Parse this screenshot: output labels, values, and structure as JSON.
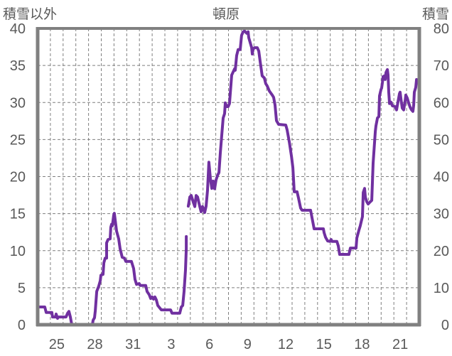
{
  "chart_data": {
    "type": "line",
    "title": "頓原",
    "ylabel_left": "積雪以外",
    "ylabel_right": "積雪",
    "ylim_left": [
      0,
      40
    ],
    "ylim_right": [
      0,
      80
    ],
    "yticks_left": [
      "0",
      "5",
      "10",
      "15",
      "20",
      "25",
      "30",
      "35",
      "40"
    ],
    "yticks_right": [
      "0",
      "10",
      "20",
      "30",
      "40",
      "50",
      "60",
      "70",
      "80"
    ],
    "xlim_days": [
      0,
      30
    ],
    "x_tick_labels": [
      {
        "label": "25",
        "day": 1.5
      },
      {
        "label": "28",
        "day": 4.5
      },
      {
        "label": "31",
        "day": 7.5
      },
      {
        "label": "3",
        "day": 10.5
      },
      {
        "label": "6",
        "day": 13.5
      },
      {
        "label": "9",
        "day": 16.5
      },
      {
        "label": "12",
        "day": 19.5
      },
      {
        "label": "15",
        "day": 22.5
      },
      {
        "label": "18",
        "day": 25.5
      },
      {
        "label": "21",
        "day": 28.5
      }
    ],
    "grid": true,
    "series": [
      {
        "name": "積雪",
        "axis": "right",
        "color": "#7030a0",
        "segments": [
          [
            [
              0,
              4.8
            ],
            [
              0.56,
              4.8
            ],
            [
              0.67,
              3.3
            ],
            [
              1.12,
              3.3
            ],
            [
              1.17,
              2.1
            ],
            [
              1.4,
              2.1
            ],
            [
              1.45,
              2.9
            ],
            [
              1.56,
              1.7
            ],
            [
              1.62,
              2.1
            ],
            [
              2.23,
              2.1
            ],
            [
              2.35,
              3.1
            ],
            [
              2.46,
              3.6
            ],
            [
              2.57,
              2.1
            ],
            [
              2.68,
              0
            ],
            [
              4.3,
              0
            ],
            [
              4.36,
              1.2
            ],
            [
              4.47,
              1.9
            ],
            [
              4.53,
              3.8
            ],
            [
              4.64,
              9.0
            ],
            [
              4.8,
              10.4
            ],
            [
              4.92,
              11.9
            ],
            [
              4.97,
              13.4
            ],
            [
              5.14,
              13.6
            ],
            [
              5.2,
              16.7
            ],
            [
              5.31,
              18.0
            ],
            [
              5.42,
              18.0
            ],
            [
              5.42,
              22.1
            ],
            [
              5.53,
              23.0
            ],
            [
              5.7,
              23.2
            ],
            [
              5.75,
              26.3
            ],
            [
              5.81,
              27.1
            ],
            [
              5.87,
              26.7
            ],
            [
              5.98,
              29.6
            ],
            [
              6.03,
              30.1
            ],
            [
              6.15,
              26.7
            ],
            [
              6.2,
              25.3
            ],
            [
              6.37,
              23.2
            ],
            [
              6.48,
              20.5
            ],
            [
              6.65,
              18.2
            ],
            [
              6.82,
              18.0
            ],
            [
              6.93,
              17.1
            ],
            [
              7.37,
              17.1
            ],
            [
              7.54,
              15.2
            ],
            [
              7.65,
              12.3
            ],
            [
              7.77,
              10.9
            ],
            [
              7.99,
              11.1
            ],
            [
              8.05,
              10.6
            ],
            [
              8.49,
              10.6
            ],
            [
              8.6,
              9.0
            ],
            [
              8.77,
              8.1
            ],
            [
              8.88,
              7.1
            ],
            [
              9.0,
              7.5
            ],
            [
              9.11,
              6.9
            ],
            [
              9.22,
              7.5
            ],
            [
              9.33,
              6.7
            ],
            [
              9.44,
              5.2
            ],
            [
              9.72,
              4.0
            ],
            [
              10.45,
              4.0
            ],
            [
              10.56,
              3.1
            ],
            [
              11.17,
              3.1
            ],
            [
              11.29,
              4.8
            ],
            [
              11.4,
              5.2
            ],
            [
              11.51,
              9.0
            ],
            [
              11.62,
              14.8
            ],
            [
              11.68,
              20.5
            ],
            [
              11.68,
              23.8
            ]
          ],
          [
            [
              11.84,
              32.0
            ],
            [
              11.96,
              34.5
            ],
            [
              12.07,
              34.9
            ],
            [
              12.24,
              33.0
            ],
            [
              12.35,
              31.9
            ],
            [
              12.46,
              34.9
            ],
            [
              12.57,
              34.5
            ],
            [
              12.74,
              32.0
            ],
            [
              12.85,
              30.5
            ],
            [
              12.96,
              31.9
            ],
            [
              13.13,
              30.3
            ],
            [
              13.24,
              32.0
            ],
            [
              13.35,
              36.3
            ],
            [
              13.46,
              43.9
            ],
            [
              13.58,
              39.3
            ],
            [
              13.69,
              36.8
            ],
            [
              13.8,
              38.8
            ],
            [
              13.91,
              36.7
            ],
            [
              14.02,
              39.1
            ],
            [
              14.14,
              40.3
            ],
            [
              14.25,
              41.1
            ],
            [
              14.36,
              46.4
            ],
            [
              14.58,
              55.8
            ],
            [
              14.69,
              57.0
            ],
            [
              14.75,
              59.9
            ],
            [
              14.86,
              58.9
            ],
            [
              14.97,
              58.9
            ],
            [
              15.08,
              59.7
            ],
            [
              15.25,
              67.4
            ],
            [
              15.48,
              69.1
            ],
            [
              15.53,
              68.7
            ],
            [
              15.64,
              72.7
            ],
            [
              15.76,
              74.3
            ],
            [
              15.92,
              74.3
            ],
            [
              16.03,
              78.1
            ],
            [
              16.15,
              79.1
            ],
            [
              16.26,
              79.3
            ],
            [
              16.43,
              78.7
            ],
            [
              16.54,
              79.1
            ],
            [
              16.59,
              77.5
            ],
            [
              16.82,
              74.8
            ],
            [
              16.87,
              73.1
            ],
            [
              16.93,
              74.3
            ],
            [
              17.04,
              74.8
            ],
            [
              17.26,
              74.8
            ],
            [
              17.38,
              73.9
            ],
            [
              17.49,
              71.0
            ],
            [
              17.65,
              67.2
            ],
            [
              17.82,
              66.6
            ],
            [
              17.93,
              65.1
            ],
            [
              18.04,
              64.5
            ],
            [
              18.21,
              63.1
            ],
            [
              18.44,
              62.0
            ],
            [
              18.55,
              61.4
            ],
            [
              18.66,
              59.3
            ],
            [
              18.77,
              55.1
            ],
            [
              18.94,
              54.1
            ],
            [
              19.5,
              53.9
            ],
            [
              19.61,
              52.6
            ],
            [
              19.78,
              49.3
            ],
            [
              19.95,
              45.5
            ],
            [
              20.06,
              42.4
            ],
            [
              20.17,
              35.9
            ],
            [
              20.39,
              35.9
            ],
            [
              20.5,
              34.3
            ],
            [
              20.67,
              31.5
            ],
            [
              20.78,
              30.9
            ],
            [
              21.45,
              30.9
            ],
            [
              21.73,
              25.9
            ],
            [
              22.46,
              25.9
            ],
            [
              22.52,
              24.8
            ],
            [
              22.63,
              23.6
            ],
            [
              22.8,
              22.6
            ],
            [
              22.96,
              22.5
            ],
            [
              23.07,
              23.0
            ],
            [
              23.13,
              22.5
            ],
            [
              23.52,
              22.5
            ],
            [
              23.63,
              21.3
            ],
            [
              23.74,
              19.0
            ],
            [
              24.47,
              19.0
            ],
            [
              24.58,
              20.7
            ],
            [
              25.03,
              20.7
            ],
            [
              25.09,
              23.4
            ],
            [
              25.25,
              25.5
            ],
            [
              25.36,
              26.7
            ],
            [
              25.42,
              27.6
            ],
            [
              25.53,
              29.2
            ],
            [
              25.59,
              35.7
            ],
            [
              25.7,
              36.8
            ],
            [
              25.76,
              34.4
            ],
            [
              25.87,
              33.2
            ],
            [
              25.98,
              32.6
            ],
            [
              26.09,
              33.0
            ],
            [
              26.26,
              33.6
            ],
            [
              26.37,
              43.6
            ],
            [
              26.54,
              52.2
            ],
            [
              26.59,
              53.7
            ],
            [
              26.71,
              55.8
            ],
            [
              26.82,
              56.2
            ],
            [
              26.87,
              61.8
            ],
            [
              26.99,
              63.5
            ],
            [
              27.04,
              63.9
            ],
            [
              27.1,
              65.4
            ],
            [
              27.15,
              67.0
            ],
            [
              27.26,
              67.2
            ],
            [
              27.32,
              66.2
            ],
            [
              27.38,
              68.1
            ],
            [
              27.49,
              68.9
            ],
            [
              27.54,
              67.5
            ],
            [
              27.6,
              62.8
            ],
            [
              27.66,
              59.7
            ],
            [
              27.77,
              60.1
            ],
            [
              27.88,
              59.1
            ],
            [
              28.1,
              58.9
            ],
            [
              28.21,
              58.0
            ],
            [
              28.33,
              60.3
            ],
            [
              28.44,
              62.4
            ],
            [
              28.49,
              62.8
            ],
            [
              28.55,
              61.2
            ],
            [
              28.66,
              58.5
            ],
            [
              28.77,
              58.0
            ],
            [
              28.89,
              60.5
            ],
            [
              28.94,
              62.0
            ],
            [
              29.05,
              61.2
            ],
            [
              29.16,
              59.9
            ],
            [
              29.28,
              58.7
            ],
            [
              29.39,
              58.0
            ],
            [
              29.5,
              57.6
            ],
            [
              29.56,
              59.3
            ],
            [
              29.61,
              62.8
            ],
            [
              29.72,
              64.1
            ],
            [
              29.78,
              66.2
            ],
            [
              29.89,
              65.6
            ],
            [
              30.0,
              65.8
            ]
          ]
        ]
      }
    ],
    "colors": {
      "axis": "#808080",
      "grid": "#7f7f7f",
      "text": "#595959",
      "line": "#7030a0"
    }
  }
}
